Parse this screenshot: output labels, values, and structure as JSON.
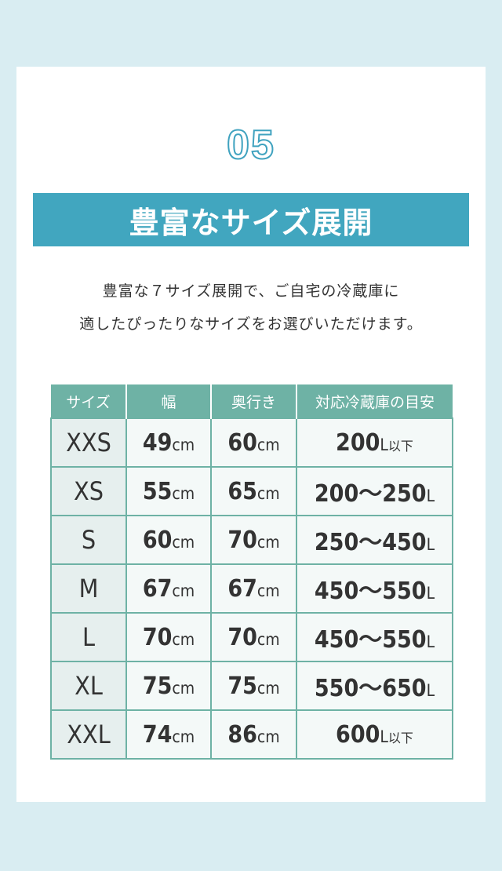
{
  "section_number": "05",
  "title": "豊富なサイズ展開",
  "description": [
    "豊富な７サイズ展開で、ご自宅の冷蔵庫に",
    "適したぴったりなサイズをお選びいただけます。"
  ],
  "colors": {
    "background": "#d9edf2",
    "title_bar": "#41a6bf",
    "table_header": "#6eb2a5"
  },
  "table": {
    "headers": [
      "サイズ",
      "幅",
      "奥行き",
      "対応冷蔵庫の目安"
    ],
    "rows": [
      {
        "size": "XXS",
        "width": "49",
        "depth": "60",
        "fridge": "200",
        "fridge_unit": "L",
        "fridge_note": "以下"
      },
      {
        "size": "XS",
        "width": "55",
        "depth": "65",
        "fridge": "200〜250",
        "fridge_unit": "L",
        "fridge_note": ""
      },
      {
        "size": "S",
        "width": "60",
        "depth": "70",
        "fridge": "250〜450",
        "fridge_unit": "L",
        "fridge_note": ""
      },
      {
        "size": "M",
        "width": "67",
        "depth": "67",
        "fridge": "450〜550",
        "fridge_unit": "L",
        "fridge_note": ""
      },
      {
        "size": "L",
        "width": "70",
        "depth": "70",
        "fridge": "450〜550",
        "fridge_unit": "L",
        "fridge_note": ""
      },
      {
        "size": "XL",
        "width": "75",
        "depth": "75",
        "fridge": "550〜650",
        "fridge_unit": "L",
        "fridge_note": ""
      },
      {
        "size": "XXL",
        "width": "74",
        "depth": "86",
        "fridge": "600",
        "fridge_unit": "L",
        "fridge_note": "以下"
      }
    ],
    "unit_cm": "cm"
  }
}
